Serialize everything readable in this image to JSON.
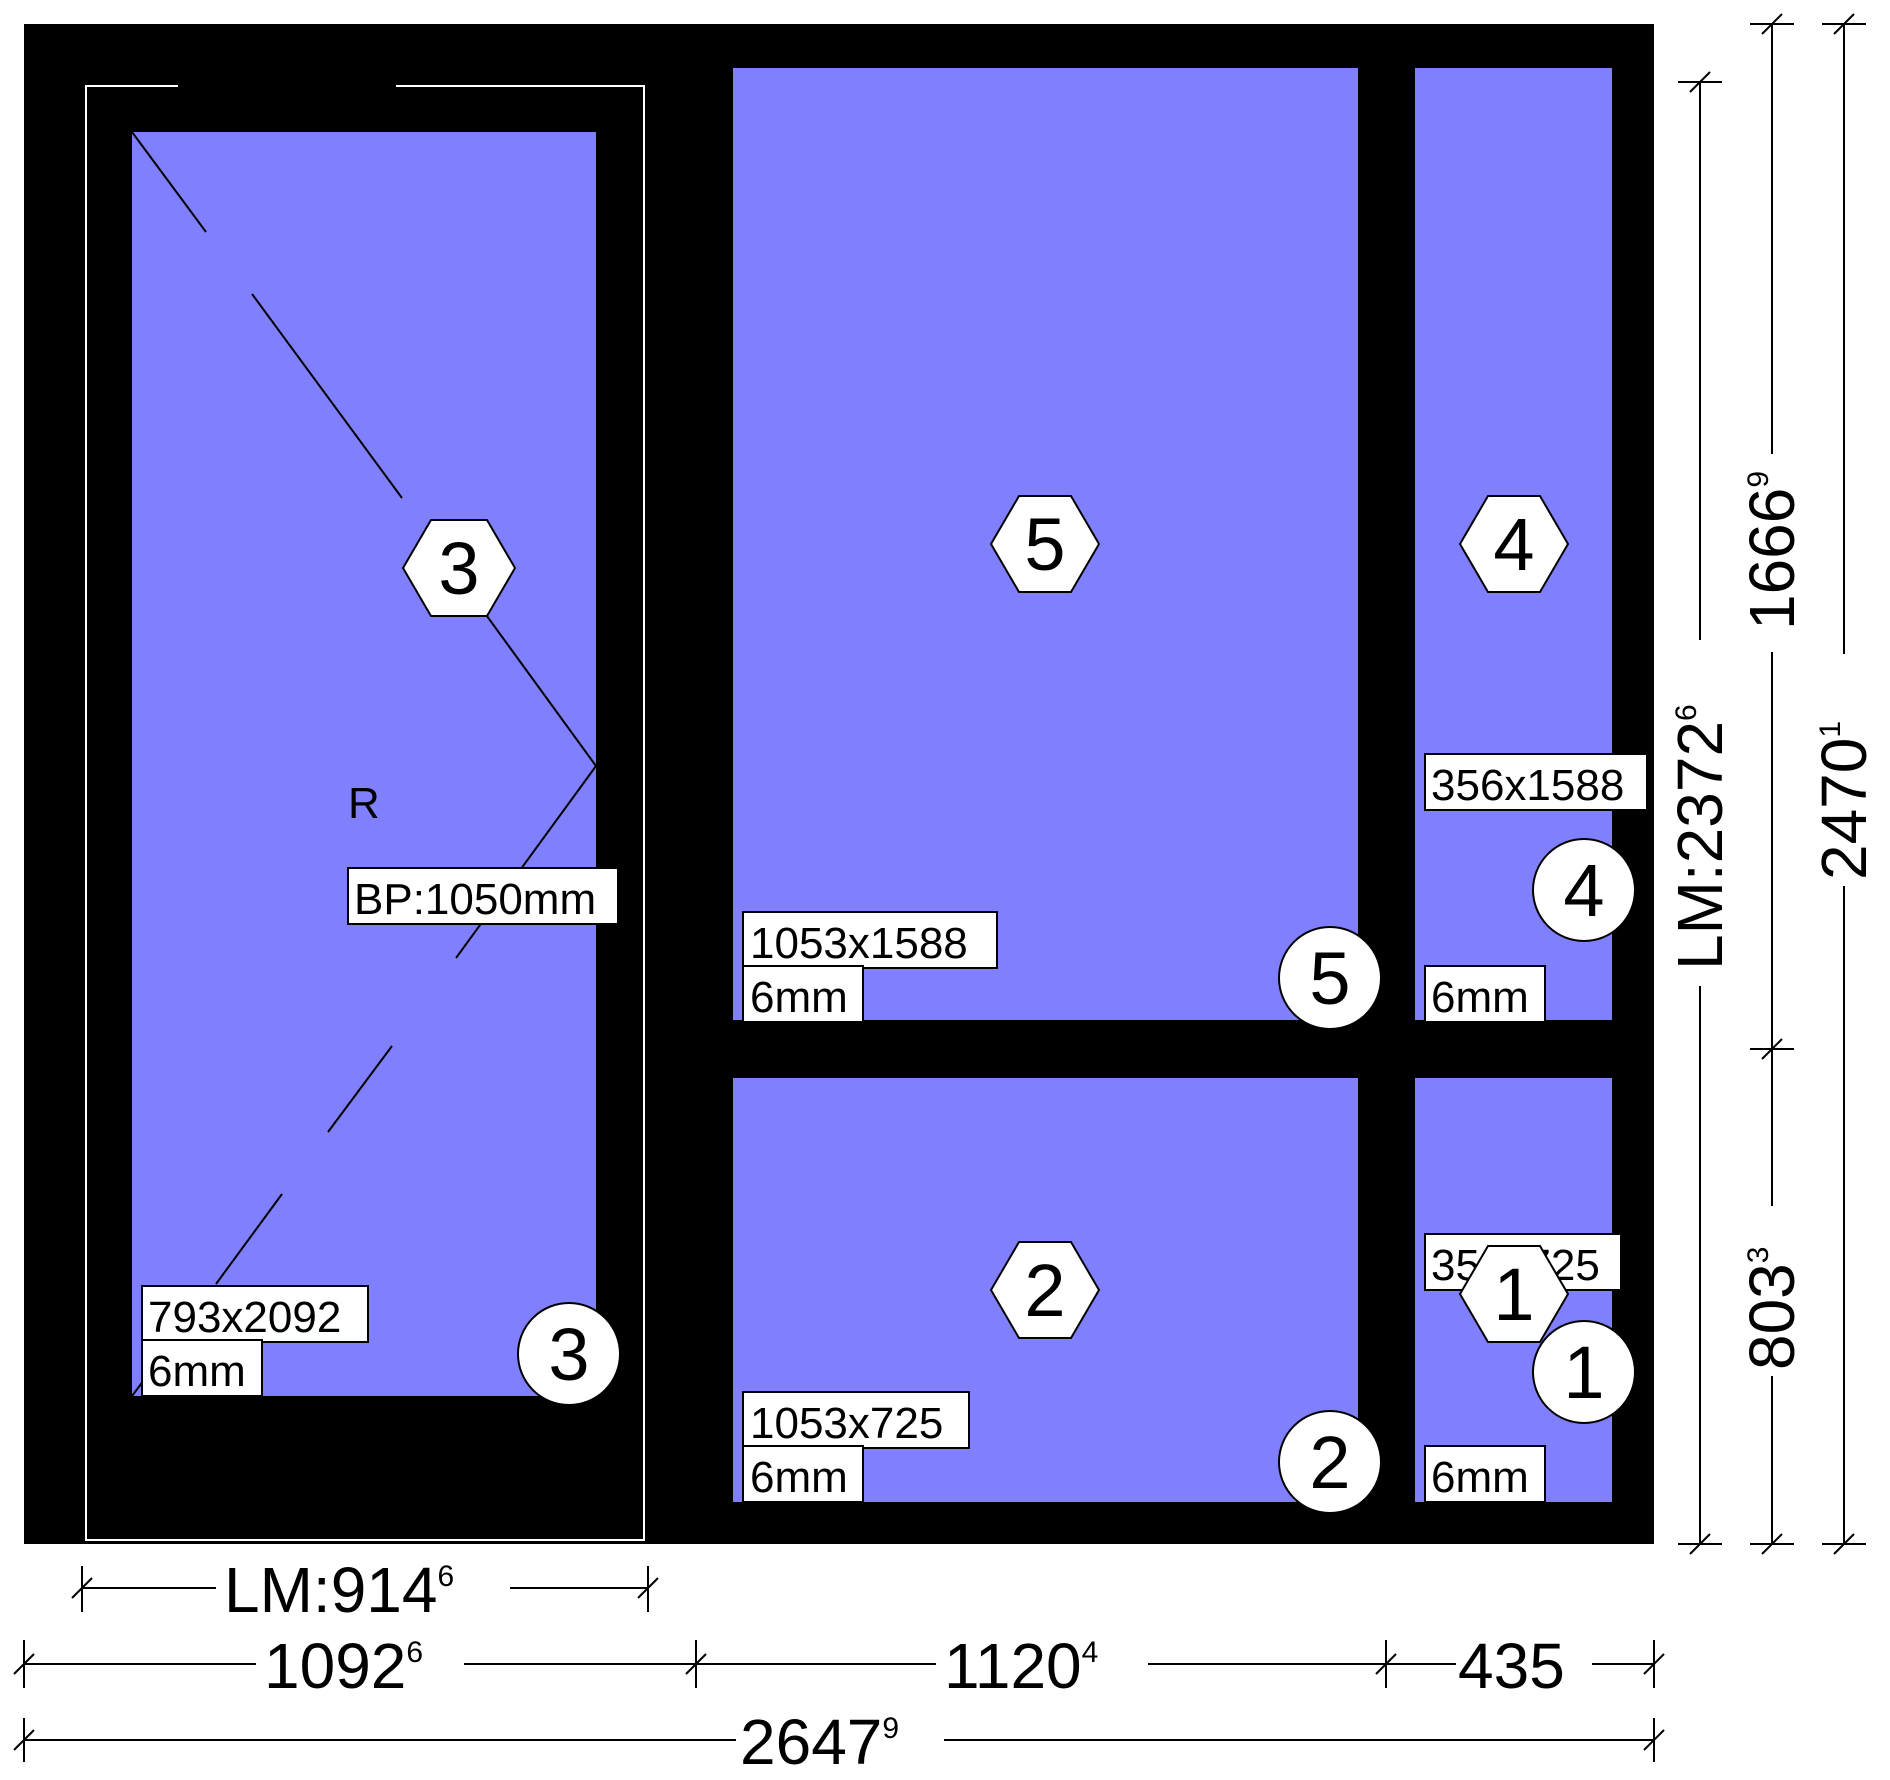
{
  "colors": {
    "frame": "#000000",
    "glass": "#8080ff",
    "marker_fill": "#ffffff",
    "line": "#000000"
  },
  "panels": [
    {
      "id": "1",
      "size": "356x725",
      "glass": "6mm"
    },
    {
      "id": "2",
      "size": "1053x725",
      "glass": "6mm"
    },
    {
      "id": "3",
      "size": "793x2092",
      "glass": "6mm",
      "opening": "R",
      "handle": "BP:1050mm"
    },
    {
      "id": "4",
      "size": "356x1588",
      "glass": "6mm"
    },
    {
      "id": "5",
      "size": "1053x1588",
      "glass": "6mm"
    }
  ],
  "dimensions": {
    "horizontal": {
      "door_lm": {
        "main": "LM:914",
        "sup": "6"
      },
      "col1": {
        "main": "1092",
        "sup": "6"
      },
      "col2": {
        "main": "1120",
        "sup": "4"
      },
      "col3": {
        "main": "435",
        "sup": ""
      },
      "total": {
        "main": "2647",
        "sup": "9"
      }
    },
    "vertical": {
      "lm": {
        "main": "LM:2372",
        "sup": "6"
      },
      "upper": {
        "main": "1666",
        "sup": "9"
      },
      "lower": {
        "main": "803",
        "sup": "3"
      },
      "total": {
        "main": "2470",
        "sup": "1"
      }
    }
  }
}
